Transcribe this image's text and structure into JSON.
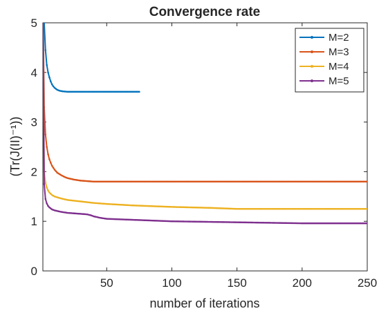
{
  "chart_data": {
    "type": "line",
    "title": "Convergence rate",
    "xlabel": "number of iterations",
    "ylabel": "(Tr(J(II)⁻¹))",
    "xlim": [
      1,
      250
    ],
    "ylim": [
      0,
      5
    ],
    "xticks": [
      50,
      100,
      150,
      200,
      250
    ],
    "yticks": [
      0,
      1,
      2,
      3,
      4,
      5
    ],
    "grid": false,
    "legend_position": "top-right",
    "series": [
      {
        "name": "M=2",
        "color": "#0072BD",
        "x": [
          1,
          2,
          3,
          4,
          5,
          6,
          7,
          8,
          9,
          10,
          12,
          14,
          16,
          18,
          20,
          25,
          30,
          40,
          50,
          60,
          70,
          75
        ],
        "y": [
          5.6,
          5.0,
          4.45,
          4.15,
          4.0,
          3.9,
          3.82,
          3.76,
          3.72,
          3.69,
          3.65,
          3.63,
          3.62,
          3.615,
          3.61,
          3.61,
          3.61,
          3.61,
          3.61,
          3.61,
          3.61,
          3.61
        ]
      },
      {
        "name": "M=3",
        "color": "#D95319",
        "x": [
          1,
          2,
          3,
          4,
          5,
          6,
          7,
          8,
          9,
          10,
          12,
          15,
          18,
          20,
          25,
          30,
          35,
          40,
          60,
          100,
          150,
          200,
          250
        ],
        "y": [
          5.6,
          3.3,
          2.75,
          2.5,
          2.35,
          2.25,
          2.18,
          2.12,
          2.08,
          2.04,
          1.98,
          1.93,
          1.89,
          1.87,
          1.84,
          1.82,
          1.81,
          1.8,
          1.8,
          1.8,
          1.8,
          1.8,
          1.8
        ]
      },
      {
        "name": "M=4",
        "color": "#EDB120",
        "x": [
          1,
          2,
          3,
          4,
          5,
          6,
          8,
          10,
          15,
          20,
          30,
          40,
          50,
          70,
          100,
          130,
          150,
          170,
          200,
          250
        ],
        "y": [
          5.6,
          2.0,
          1.78,
          1.68,
          1.62,
          1.58,
          1.53,
          1.5,
          1.46,
          1.43,
          1.4,
          1.37,
          1.35,
          1.32,
          1.29,
          1.27,
          1.25,
          1.25,
          1.25,
          1.25
        ]
      },
      {
        "name": "M=5",
        "color": "#7E2F8E",
        "x": [
          1,
          2,
          3,
          4,
          5,
          6,
          8,
          10,
          15,
          20,
          30,
          35,
          38,
          40,
          45,
          50,
          60,
          80,
          100,
          150,
          200,
          250
        ],
        "y": [
          5.6,
          1.75,
          1.45,
          1.36,
          1.31,
          1.28,
          1.24,
          1.22,
          1.19,
          1.17,
          1.15,
          1.14,
          1.12,
          1.1,
          1.07,
          1.05,
          1.04,
          1.02,
          1.0,
          0.98,
          0.96,
          0.96
        ]
      }
    ]
  }
}
